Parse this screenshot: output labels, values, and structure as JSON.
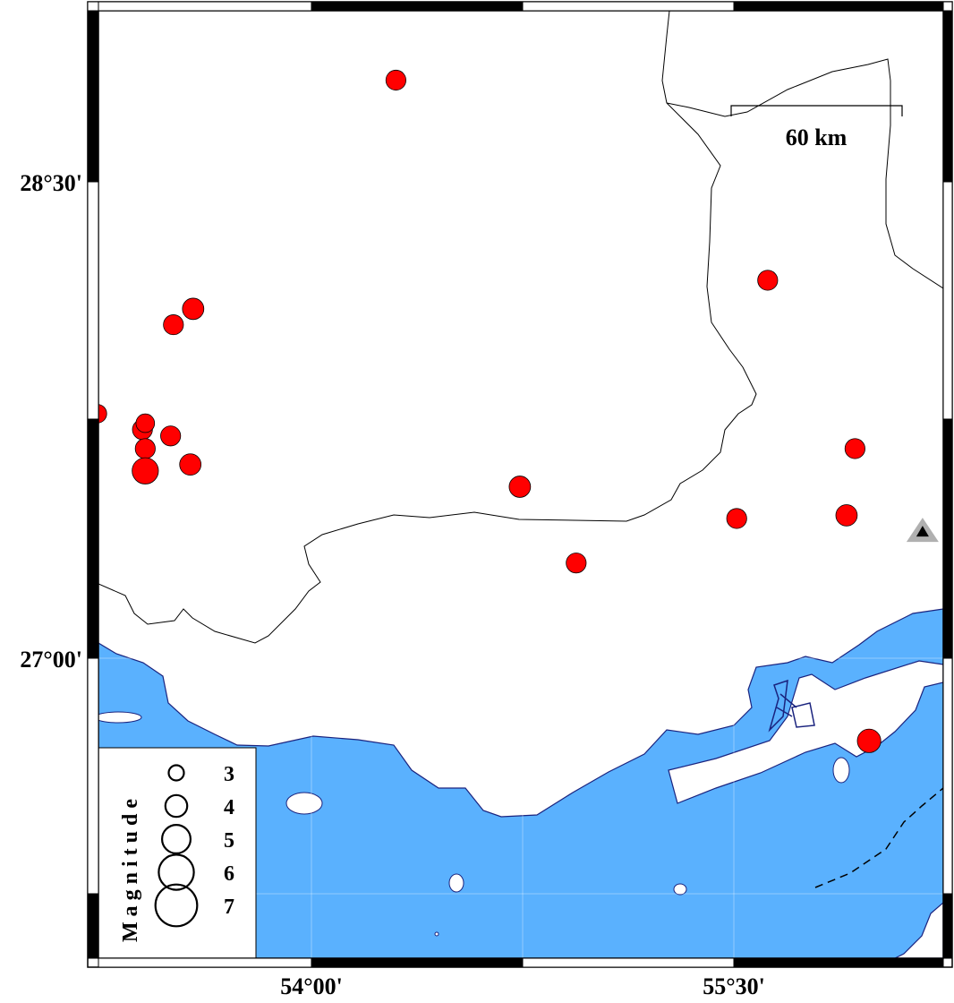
{
  "map": {
    "colors": {
      "sea": "#5ab1fe",
      "land": "#ffffff",
      "coast": "#1a237e",
      "event": "#ff0000",
      "station": "#b0b0b0"
    },
    "extent": {
      "lon": [
        53.24,
        56.24
      ],
      "lat": [
        26.53,
        28.82
      ]
    },
    "lon_labels": [
      {
        "lon": 54.0,
        "text": "54°00'"
      },
      {
        "lon": 55.5,
        "text": "55°30'"
      }
    ],
    "lat_labels": [
      {
        "lat": 28.5,
        "text": "28°30'"
      },
      {
        "lat": 27.0,
        "text": "27°00'"
      }
    ],
    "scale_bar": {
      "label": "60 km",
      "km": 60
    },
    "legend": {
      "title": "Magnitude",
      "entries": [
        {
          "mag": 3,
          "text": "3"
        },
        {
          "mag": 4,
          "text": "4"
        },
        {
          "mag": 5,
          "text": "5"
        },
        {
          "mag": 6,
          "text": "6"
        },
        {
          "mag": 7,
          "text": "7"
        }
      ]
    },
    "events": [
      {
        "lon": 54.3,
        "lat": 28.82,
        "mag": 3.3
      },
      {
        "lon": 55.62,
        "lat": 28.19,
        "mag": 3.3
      },
      {
        "lon": 53.58,
        "lat": 28.1,
        "mag": 3.5
      },
      {
        "lon": 53.51,
        "lat": 28.05,
        "mag": 3.3
      },
      {
        "lon": 53.24,
        "lat": 27.77,
        "mag": 3.1
      },
      {
        "lon": 53.4,
        "lat": 27.72,
        "mag": 3.3
      },
      {
        "lon": 53.41,
        "lat": 27.74,
        "mag": 3.1
      },
      {
        "lon": 53.5,
        "lat": 27.7,
        "mag": 3.3
      },
      {
        "lon": 53.41,
        "lat": 27.66,
        "mag": 3.3
      },
      {
        "lon": 53.41,
        "lat": 27.59,
        "mag": 4.2
      },
      {
        "lon": 53.57,
        "lat": 27.61,
        "mag": 3.5
      },
      {
        "lon": 54.74,
        "lat": 27.54,
        "mag": 3.5
      },
      {
        "lon": 55.93,
        "lat": 27.66,
        "mag": 3.3
      },
      {
        "lon": 55.51,
        "lat": 27.44,
        "mag": 3.3
      },
      {
        "lon": 55.9,
        "lat": 27.45,
        "mag": 3.5
      },
      {
        "lon": 54.94,
        "lat": 27.3,
        "mag": 3.3
      },
      {
        "lon": 55.98,
        "lat": 26.74,
        "mag": 3.8
      }
    ],
    "stations": [
      {
        "lon": 56.17,
        "lat": 27.4
      }
    ]
  }
}
